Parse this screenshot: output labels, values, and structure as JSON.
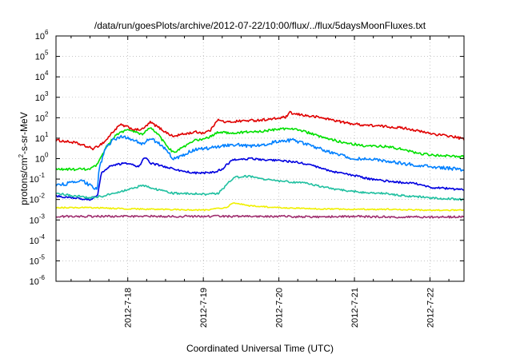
{
  "chart_data": {
    "type": "line",
    "title": "/data/run/goesPlots/archive/2012-07-22/10:00/flux/../flux/5daysMoonFluxes.txt",
    "xlabel": "Coordinated Universal Time (UTC)",
    "ylabel_parts": {
      "pre": "protons/cm",
      "sup": "2",
      "post": "-s-sr-MeV"
    },
    "y_scale": "log",
    "ylim_exp": [
      -6,
      6
    ],
    "y_tick_exponents": [
      -6,
      -5,
      -4,
      -3,
      -2,
      -1,
      0,
      1,
      2,
      3,
      4,
      5,
      6
    ],
    "xlim_days": [
      17.05,
      22.45
    ],
    "x_ticks": [
      {
        "day": 18,
        "label": "2012-7-18"
      },
      {
        "day": 19,
        "label": "2012-7-19"
      },
      {
        "day": 20,
        "label": "2012-7-20"
      },
      {
        "day": 21,
        "label": "2012-7-21"
      },
      {
        "day": 22,
        "label": "2012-7-22"
      }
    ],
    "grid": true,
    "legend": "none",
    "series": [
      {
        "color": "#e00000",
        "noise": 0.06,
        "points": [
          [
            17.05,
            8
          ],
          [
            17.3,
            6
          ],
          [
            17.55,
            3
          ],
          [
            17.7,
            7
          ],
          [
            17.8,
            20
          ],
          [
            17.9,
            45
          ],
          [
            18.0,
            35
          ],
          [
            18.1,
            25
          ],
          [
            18.2,
            28
          ],
          [
            18.3,
            60
          ],
          [
            18.4,
            35
          ],
          [
            18.5,
            20
          ],
          [
            18.6,
            12
          ],
          [
            18.7,
            15
          ],
          [
            18.9,
            20
          ],
          [
            19.0,
            18
          ],
          [
            19.1,
            25
          ],
          [
            19.18,
            80
          ],
          [
            19.3,
            60
          ],
          [
            19.5,
            70
          ],
          [
            19.7,
            75
          ],
          [
            19.9,
            85
          ],
          [
            20.0,
            95
          ],
          [
            20.1,
            110
          ],
          [
            20.15,
            180
          ],
          [
            20.2,
            150
          ],
          [
            20.3,
            140
          ],
          [
            20.4,
            120
          ],
          [
            20.5,
            110
          ],
          [
            20.7,
            80
          ],
          [
            20.9,
            55
          ],
          [
            21.1,
            45
          ],
          [
            21.3,
            40
          ],
          [
            21.5,
            35
          ],
          [
            21.7,
            30
          ],
          [
            21.9,
            20
          ],
          [
            22.1,
            15
          ],
          [
            22.3,
            12
          ],
          [
            22.45,
            9
          ]
        ]
      },
      {
        "color": "#00e000",
        "noise": 0.06,
        "points": [
          [
            17.05,
            0.3
          ],
          [
            17.5,
            0.3
          ],
          [
            17.6,
            0.5
          ],
          [
            17.7,
            3
          ],
          [
            17.8,
            10
          ],
          [
            17.9,
            20
          ],
          [
            18.0,
            25
          ],
          [
            18.1,
            20
          ],
          [
            18.2,
            15
          ],
          [
            18.3,
            35
          ],
          [
            18.4,
            15
          ],
          [
            18.5,
            5
          ],
          [
            18.6,
            2
          ],
          [
            18.7,
            3
          ],
          [
            18.8,
            5
          ],
          [
            18.9,
            8
          ],
          [
            19.0,
            9
          ],
          [
            19.1,
            12
          ],
          [
            19.2,
            20
          ],
          [
            19.4,
            18
          ],
          [
            19.6,
            20
          ],
          [
            19.8,
            22
          ],
          [
            20.0,
            28
          ],
          [
            20.2,
            30
          ],
          [
            20.4,
            18
          ],
          [
            20.6,
            10
          ],
          [
            20.8,
            7
          ],
          [
            21.0,
            5
          ],
          [
            21.2,
            4
          ],
          [
            21.4,
            4
          ],
          [
            21.6,
            3
          ],
          [
            21.8,
            2
          ],
          [
            22.0,
            1.5
          ],
          [
            22.2,
            1.4
          ],
          [
            22.45,
            1.2
          ]
        ]
      },
      {
        "color": "#0080ff",
        "noise": 0.08,
        "points": [
          [
            17.05,
            0.05
          ],
          [
            17.2,
            0.06
          ],
          [
            17.4,
            0.08
          ],
          [
            17.5,
            0.05
          ],
          [
            17.6,
            0.03
          ],
          [
            17.62,
            0.3
          ],
          [
            17.7,
            3
          ],
          [
            17.8,
            8
          ],
          [
            17.9,
            12
          ],
          [
            18.0,
            10
          ],
          [
            18.1,
            8
          ],
          [
            18.2,
            5
          ],
          [
            18.3,
            10
          ],
          [
            18.4,
            6
          ],
          [
            18.5,
            3
          ],
          [
            18.6,
            1
          ],
          [
            18.7,
            1.2
          ],
          [
            18.8,
            2
          ],
          [
            18.9,
            3
          ],
          [
            19.0,
            3
          ],
          [
            19.2,
            4
          ],
          [
            19.4,
            5
          ],
          [
            19.6,
            4
          ],
          [
            19.8,
            5
          ],
          [
            20.0,
            7
          ],
          [
            20.2,
            8
          ],
          [
            20.3,
            6
          ],
          [
            20.5,
            3.5
          ],
          [
            20.7,
            2
          ],
          [
            20.9,
            1.2
          ],
          [
            21.0,
            1
          ],
          [
            21.2,
            0.9
          ],
          [
            21.4,
            0.8
          ],
          [
            21.6,
            0.6
          ],
          [
            21.8,
            0.5
          ],
          [
            22.0,
            0.4
          ],
          [
            22.2,
            0.35
          ],
          [
            22.45,
            0.28
          ]
        ]
      },
      {
        "color": "#0000e0",
        "noise": 0.05,
        "points": [
          [
            17.05,
            0.015
          ],
          [
            17.3,
            0.012
          ],
          [
            17.5,
            0.01
          ],
          [
            17.6,
            0.015
          ],
          [
            17.65,
            0.2
          ],
          [
            17.75,
            0.4
          ],
          [
            17.85,
            0.5
          ],
          [
            17.95,
            0.6
          ],
          [
            18.05,
            0.5
          ],
          [
            18.15,
            0.4
          ],
          [
            18.22,
            1.2
          ],
          [
            18.3,
            0.6
          ],
          [
            18.5,
            0.4
          ],
          [
            18.7,
            0.25
          ],
          [
            18.9,
            0.2
          ],
          [
            19.1,
            0.2
          ],
          [
            19.25,
            0.3
          ],
          [
            19.3,
            0.5
          ],
          [
            19.4,
            0.9
          ],
          [
            19.6,
            1
          ],
          [
            19.8,
            0.9
          ],
          [
            20.0,
            0.8
          ],
          [
            20.2,
            0.7
          ],
          [
            20.4,
            0.5
          ],
          [
            20.6,
            0.3
          ],
          [
            20.8,
            0.2
          ],
          [
            21.0,
            0.15
          ],
          [
            21.2,
            0.1
          ],
          [
            21.4,
            0.08
          ],
          [
            21.6,
            0.07
          ],
          [
            21.8,
            0.06
          ],
          [
            22.0,
            0.04
          ],
          [
            22.2,
            0.035
          ],
          [
            22.45,
            0.03
          ]
        ]
      },
      {
        "color": "#20c0a0",
        "noise": 0.05,
        "points": [
          [
            17.05,
            0.02
          ],
          [
            17.3,
            0.015
          ],
          [
            17.5,
            0.012
          ],
          [
            17.7,
            0.015
          ],
          [
            17.8,
            0.02
          ],
          [
            18.0,
            0.03
          ],
          [
            18.2,
            0.05
          ],
          [
            18.4,
            0.03
          ],
          [
            18.6,
            0.02
          ],
          [
            18.8,
            0.02
          ],
          [
            19.0,
            0.018
          ],
          [
            19.2,
            0.02
          ],
          [
            19.3,
            0.05
          ],
          [
            19.4,
            0.12
          ],
          [
            19.6,
            0.14
          ],
          [
            19.8,
            0.1
          ],
          [
            20.0,
            0.08
          ],
          [
            20.2,
            0.07
          ],
          [
            20.4,
            0.06
          ],
          [
            20.6,
            0.04
          ],
          [
            20.8,
            0.03
          ],
          [
            21.0,
            0.025
          ],
          [
            21.2,
            0.02
          ],
          [
            21.4,
            0.02
          ],
          [
            21.6,
            0.016
          ],
          [
            21.8,
            0.014
          ],
          [
            22.0,
            0.012
          ],
          [
            22.2,
            0.011
          ],
          [
            22.45,
            0.01
          ]
        ]
      },
      {
        "color": "#f0f000",
        "noise": 0.03,
        "points": [
          [
            17.05,
            0.004
          ],
          [
            17.5,
            0.004
          ],
          [
            18.0,
            0.0035
          ],
          [
            18.5,
            0.0033
          ],
          [
            19.0,
            0.003
          ],
          [
            19.3,
            0.004
          ],
          [
            19.4,
            0.007
          ],
          [
            19.6,
            0.005
          ],
          [
            20.0,
            0.004
          ],
          [
            20.5,
            0.0035
          ],
          [
            21.0,
            0.0033
          ],
          [
            21.5,
            0.0033
          ],
          [
            22.0,
            0.003
          ],
          [
            22.45,
            0.003
          ]
        ]
      },
      {
        "color": "#a03070",
        "noise": 0.05,
        "points": [
          [
            17.05,
            0.0015
          ],
          [
            17.5,
            0.0015
          ],
          [
            18.0,
            0.0015
          ],
          [
            18.5,
            0.0015
          ],
          [
            19.0,
            0.0015
          ],
          [
            19.5,
            0.0015
          ],
          [
            20.0,
            0.0015
          ],
          [
            20.5,
            0.0014
          ],
          [
            21.0,
            0.0015
          ],
          [
            21.5,
            0.0014
          ],
          [
            22.0,
            0.0014
          ],
          [
            22.45,
            0.0014
          ]
        ]
      }
    ]
  }
}
